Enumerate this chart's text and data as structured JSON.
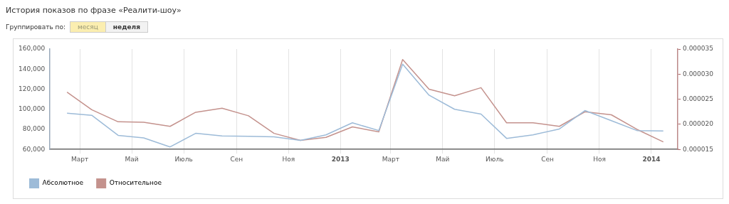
{
  "chart_data": {
    "type": "line",
    "title": "История показов по фразе «Реалити-шоу»",
    "annotations": [
      "Группировать по:",
      "месяц",
      "неделя"
    ],
    "x": [
      "2012-02-15",
      "2012-03-15",
      "2012-04-15",
      "2012-05-15",
      "2012-06-15",
      "2012-07-15",
      "2012-08-15",
      "2012-09-15",
      "2012-10-15",
      "2012-11-15",
      "2012-12-15",
      "2013-01-15",
      "2013-02-15",
      "2013-03-15",
      "2013-04-15",
      "2013-05-15",
      "2013-06-15",
      "2013-07-15",
      "2013-08-15",
      "2013-09-15",
      "2013-10-15",
      "2013-11-15",
      "2013-12-15",
      "2014-01-15"
    ],
    "series": [
      {
        "name": "Абсолютное",
        "color": "#9dbbd8",
        "values": [
          96000,
          94000,
          74000,
          71500,
          62500,
          76000,
          73500,
          73000,
          72500,
          69000,
          74500,
          86500,
          78800,
          145000,
          114000,
          100000,
          95200,
          71000,
          74500,
          80400,
          98700,
          88600,
          78800,
          78300
        ]
      },
      {
        "name": "Относительное",
        "color": "#c4928d",
        "axis": "y2",
        "values": [
          2.64e-05,
          2.29e-05,
          2.05e-05,
          2.04e-05,
          1.96e-05,
          2.24e-05,
          2.32e-05,
          2.17e-05,
          1.82e-05,
          1.68e-05,
          1.74e-05,
          1.95e-05,
          1.85e-05,
          3.29e-05,
          2.7e-05,
          2.57e-05,
          2.73e-05,
          2.03e-05,
          2.03e-05,
          1.96e-05,
          2.25e-05,
          2.19e-05,
          1.9e-05,
          1.65e-05
        ]
      }
    ],
    "xlim": [
      "2012-01-26",
      "2014-02-01"
    ],
    "xticks": [
      {
        "value": "2012-03-01",
        "label": "Март"
      },
      {
        "value": "2012-05-01",
        "label": "Май"
      },
      {
        "value": "2012-07-01",
        "label": "Июль"
      },
      {
        "value": "2012-09-01",
        "label": "Сен"
      },
      {
        "value": "2012-11-01",
        "label": "Ноя"
      },
      {
        "value": "2013-01-01",
        "label": "2013"
      },
      {
        "value": "2013-03-01",
        "label": "Март"
      },
      {
        "value": "2013-05-01",
        "label": "Май"
      },
      {
        "value": "2013-07-01",
        "label": "Июль"
      },
      {
        "value": "2013-09-01",
        "label": "Сен"
      },
      {
        "value": "2013-11-01",
        "label": "Ноя"
      },
      {
        "value": "2014-01-01",
        "label": "2014"
      }
    ],
    "ylim": [
      60000,
      160000
    ],
    "yticks": [
      {
        "value": 60000,
        "label": "60,000"
      },
      {
        "value": 80000,
        "label": "80,000"
      },
      {
        "value": 100000,
        "label": "100,000"
      },
      {
        "value": 120000,
        "label": "120,000"
      },
      {
        "value": 140000,
        "label": "140,000"
      },
      {
        "value": 160000,
        "label": "160,000"
      }
    ],
    "y2lim": [
      1.5e-05,
      3.5e-05
    ],
    "y2ticks": [
      {
        "value": 1.5e-05,
        "label": "0.000015"
      },
      {
        "value": 2e-05,
        "label": "0.000020"
      },
      {
        "value": 2.5e-05,
        "label": "0.000025"
      },
      {
        "value": 3e-05,
        "label": "0.000030"
      },
      {
        "value": 3.5e-05,
        "label": "0.000035"
      }
    ],
    "grid": "x",
    "legend": "bottom left",
    "marker": "none",
    "line_style": "solid"
  }
}
